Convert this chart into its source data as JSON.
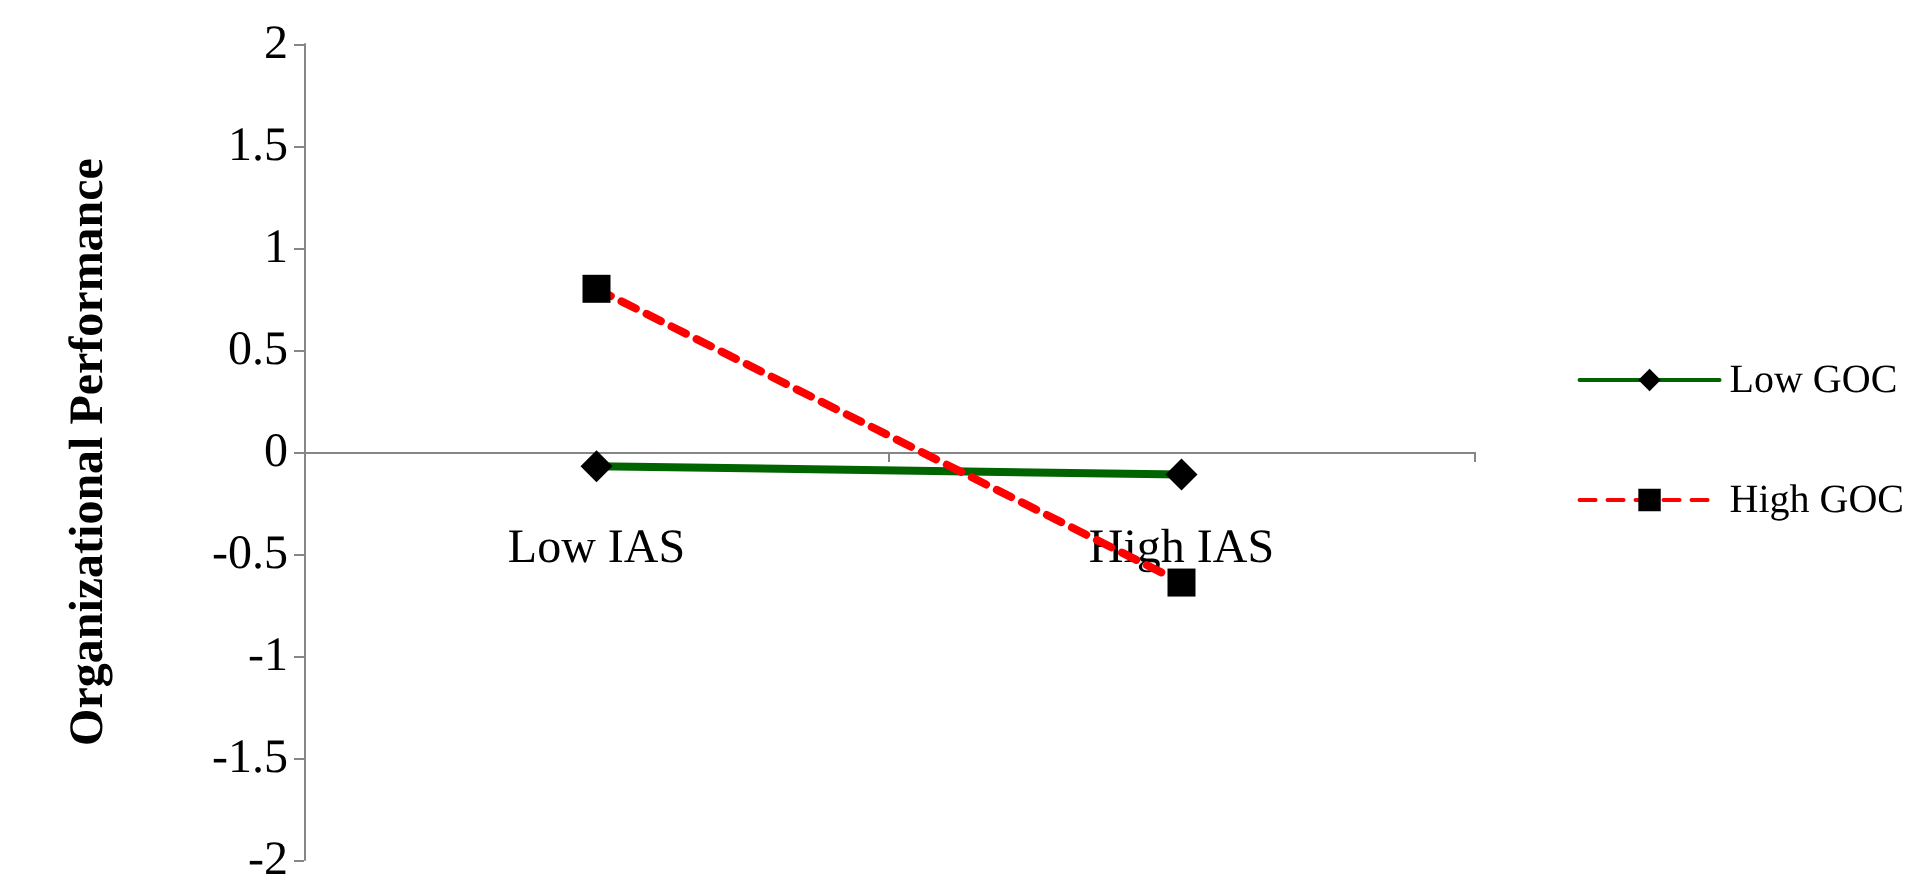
{
  "chart_data": {
    "type": "line",
    "ylabel": "Organizational Performance",
    "categories": [
      "Low IAS",
      "High IAS"
    ],
    "series": [
      {
        "name": "Low GOC",
        "color": "#006400",
        "values": [
          -0.07,
          -0.11
        ],
        "marker": "diamond",
        "line_style": "solid"
      },
      {
        "name": "High GOC",
        "color": "#ff0000",
        "values": [
          0.8,
          -0.64
        ],
        "marker": "square",
        "line_style": "dashed"
      }
    ],
    "ylim": [
      -2,
      2
    ],
    "yticks": [
      -2,
      -1.5,
      -1,
      -0.5,
      0,
      0.5,
      1,
      1.5,
      2
    ],
    "grid": false,
    "legend": "right"
  }
}
